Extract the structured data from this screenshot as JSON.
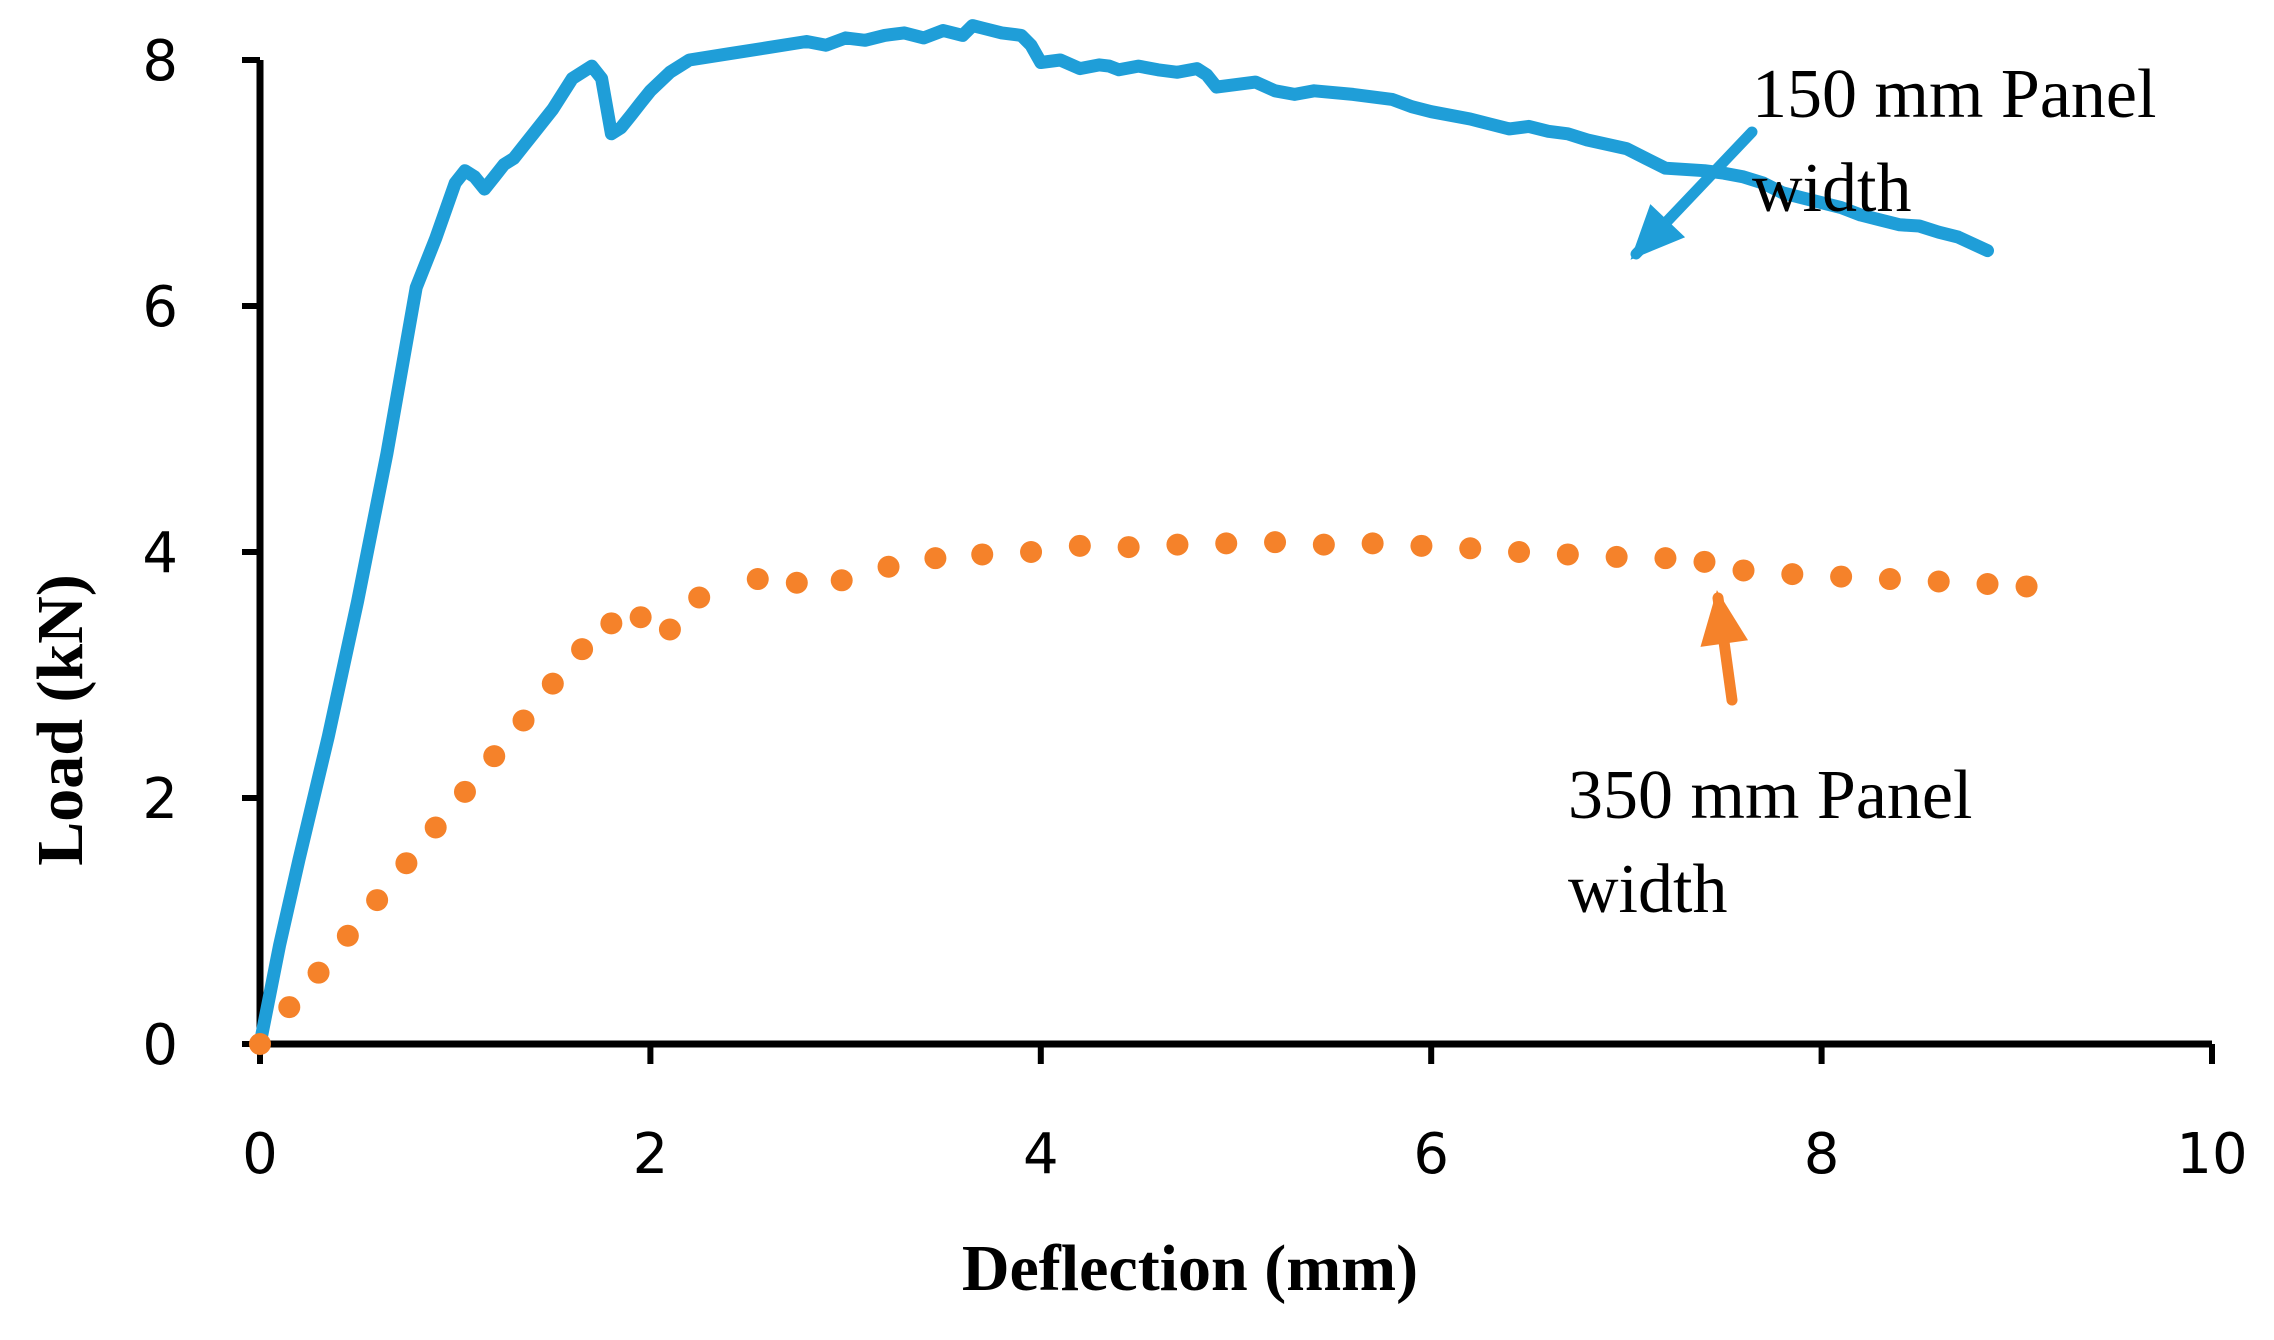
{
  "chart_data": {
    "type": "line",
    "title": "",
    "xlabel": "Deflection (mm)",
    "ylabel": "Load (kN)",
    "xlim": [
      0,
      10
    ],
    "ylim": [
      0,
      8
    ],
    "xticks": [
      0,
      2,
      4,
      6,
      8,
      10
    ],
    "yticks": [
      0,
      2,
      4,
      6,
      8
    ],
    "x_tick_labels": [
      "0",
      "2",
      "4",
      "6",
      "8",
      "10"
    ],
    "y_tick_labels": [
      "0",
      "2",
      "4",
      "6",
      "8"
    ],
    "grid": false,
    "series": [
      {
        "name": "150 mm Panel width",
        "style": "solid",
        "color": "#1f9ed8",
        "x": [
          0,
          0.1,
          0.2,
          0.35,
          0.5,
          0.65,
          0.8,
          0.9,
          1.0,
          1.05,
          1.1,
          1.15,
          1.2,
          1.25,
          1.3,
          1.35,
          1.4,
          1.5,
          1.6,
          1.7,
          1.75,
          1.8,
          1.85,
          1.9,
          1.95,
          2.0,
          2.1,
          2.2,
          2.4,
          2.6,
          2.8,
          2.9,
          3.0,
          3.1,
          3.2,
          3.3,
          3.4,
          3.5,
          3.6,
          3.65,
          3.7,
          3.8,
          3.9,
          3.95,
          4.0,
          4.1,
          4.2,
          4.3,
          4.35,
          4.4,
          4.5,
          4.6,
          4.7,
          4.8,
          4.85,
          4.9,
          5.0,
          5.1,
          5.2,
          5.3,
          5.4,
          5.6,
          5.8,
          5.9,
          6.0,
          6.2,
          6.3,
          6.4,
          6.5,
          6.6,
          6.7,
          6.8,
          7.0,
          7.1,
          7.2,
          7.4,
          7.5,
          7.6,
          7.7,
          7.8,
          7.9,
          8.0,
          8.1,
          8.2,
          8.3,
          8.4,
          8.5,
          8.6,
          8.7,
          8.85
        ],
        "y": [
          0,
          0.8,
          1.5,
          2.5,
          3.6,
          4.8,
          6.15,
          6.55,
          7.0,
          7.1,
          7.05,
          6.95,
          7.05,
          7.15,
          7.2,
          7.3,
          7.4,
          7.6,
          7.85,
          7.95,
          7.85,
          7.4,
          7.45,
          7.55,
          7.65,
          7.75,
          7.9,
          8.0,
          8.05,
          8.1,
          8.15,
          8.12,
          8.18,
          8.16,
          8.2,
          8.22,
          8.18,
          8.24,
          8.2,
          8.28,
          8.26,
          8.22,
          8.2,
          8.12,
          7.98,
          8.0,
          7.93,
          7.96,
          7.95,
          7.92,
          7.95,
          7.92,
          7.9,
          7.93,
          7.88,
          7.78,
          7.8,
          7.82,
          7.75,
          7.72,
          7.75,
          7.72,
          7.68,
          7.62,
          7.58,
          7.52,
          7.48,
          7.44,
          7.46,
          7.42,
          7.4,
          7.35,
          7.28,
          7.2,
          7.12,
          7.1,
          7.08,
          7.05,
          7.0,
          6.92,
          6.88,
          6.84,
          6.8,
          6.74,
          6.7,
          6.66,
          6.65,
          6.6,
          6.56,
          6.45
        ]
      },
      {
        "name": "350 mm Panel width",
        "style": "dotted",
        "color": "#f5822a",
        "x": [
          0,
          0.15,
          0.3,
          0.45,
          0.6,
          0.75,
          0.9,
          1.05,
          1.2,
          1.35,
          1.5,
          1.65,
          1.8,
          1.95,
          2.1,
          2.25,
          2.55,
          2.75,
          2.98,
          3.22,
          3.46,
          3.7,
          3.95,
          4.2,
          4.45,
          4.7,
          4.95,
          5.2,
          5.45,
          5.7,
          5.95,
          6.2,
          6.45,
          6.7,
          6.95,
          7.2,
          7.4,
          7.6,
          7.85,
          8.1,
          8.35,
          8.6,
          8.85,
          9.05
        ],
        "y": [
          0,
          0.3,
          0.58,
          0.88,
          1.17,
          1.47,
          1.76,
          2.05,
          2.34,
          2.63,
          2.93,
          3.21,
          3.42,
          3.47,
          3.37,
          3.63,
          3.78,
          3.75,
          3.77,
          3.88,
          3.95,
          3.98,
          4.0,
          4.05,
          4.04,
          4.06,
          4.07,
          4.08,
          4.06,
          4.07,
          4.05,
          4.03,
          4.0,
          3.98,
          3.96,
          3.95,
          3.92,
          3.85,
          3.82,
          3.8,
          3.78,
          3.76,
          3.74,
          3.72
        ]
      }
    ],
    "annotations": [
      {
        "lines": [
          "150 mm Panel",
          "width"
        ],
        "points_to_series": "150 mm Panel width"
      },
      {
        "lines": [
          "350 mm Panel",
          "width"
        ],
        "points_to_series": "350 mm Panel width"
      }
    ],
    "axis_color": "#000000",
    "arrow_colors": [
      "#1f9ed8",
      "#f5822a"
    ]
  }
}
